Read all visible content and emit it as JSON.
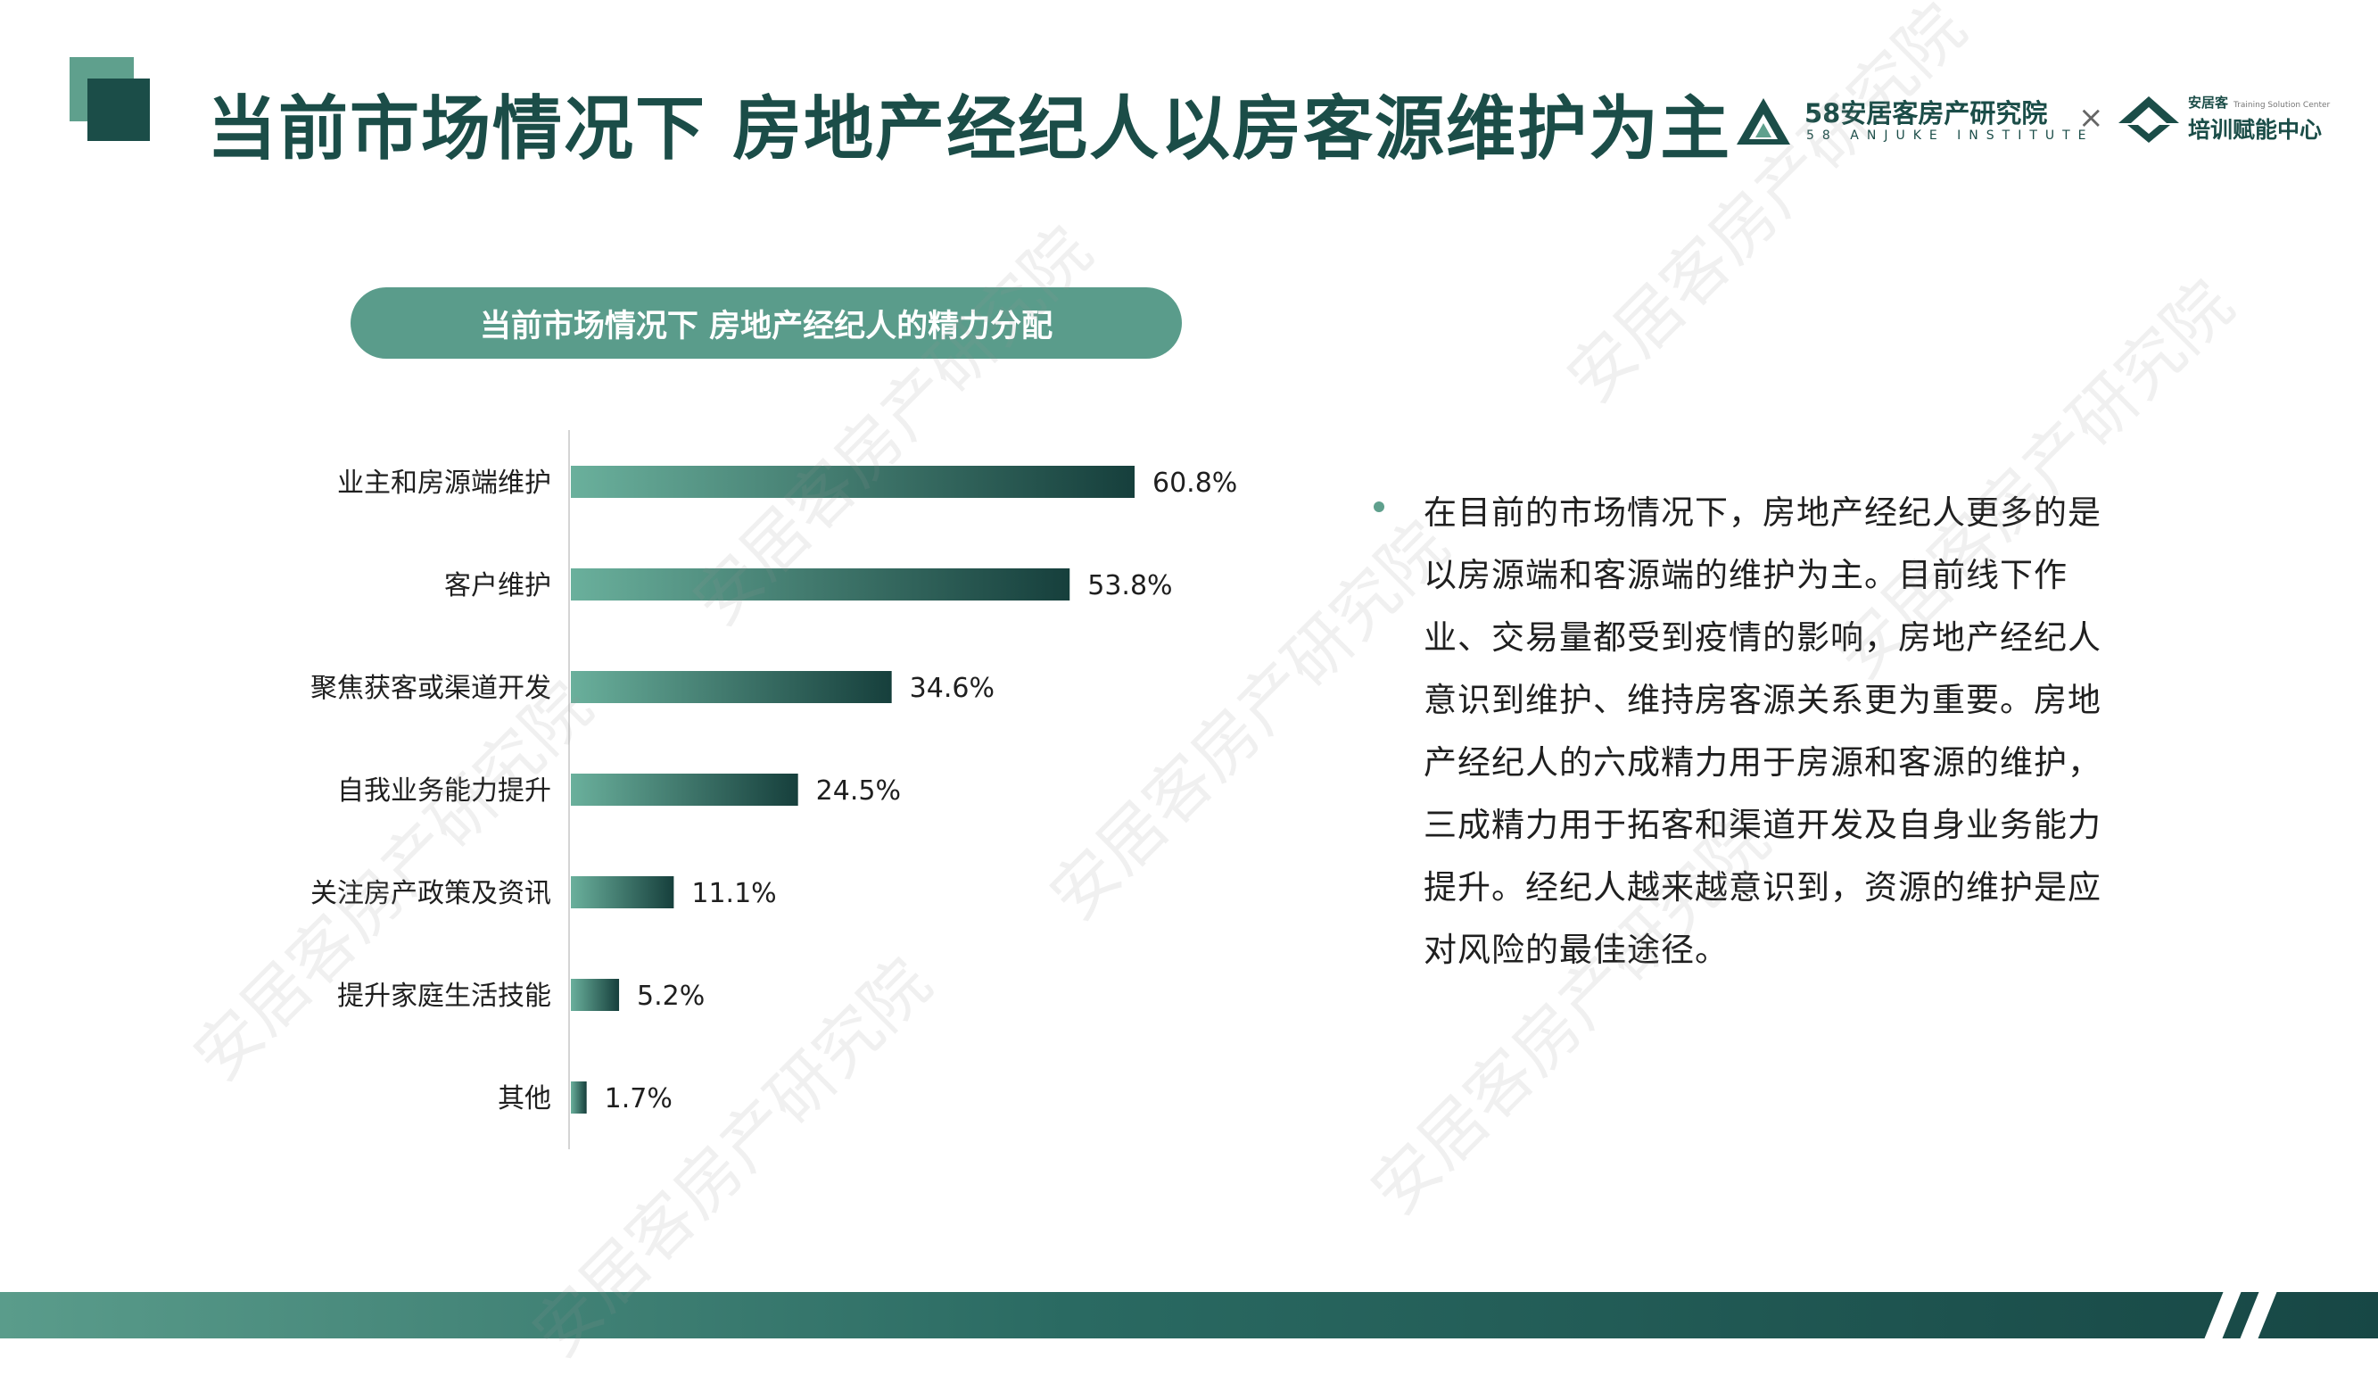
{
  "title": "当前市场情况下 房地产经纪人以房客源维护为主",
  "logos": {
    "institute_name": "58安居客房产研究院",
    "institute_sub": "58 ANJUKE INSTITUTE",
    "times": "×",
    "training_brand": "安居客",
    "training_sub": "Training Solution Center",
    "training_name": "培训赋能中心"
  },
  "watermark": "安居客房产研究院",
  "colors": {
    "brand_dark": "#1b4d48",
    "brand_light": "#5fa08d",
    "bar_start": "#6ab09c",
    "bar_end": "#163f3c"
  },
  "body_text": "在目前的市场情况下，房地产经纪人更多的是以房源端和客源端的维护为主。目前线下作业、交易量都受到疫情的影响，房地产经纪人意识到维护、维持房客源关系更为重要。房地产经纪人的六成精力用于房源和客源的维护，三成精力用于拓客和渠道开发及自身业务能力提升。经纪人越来越意识到，资源的维护是应对风险的最佳途径。",
  "chart_data": {
    "type": "bar",
    "orientation": "horizontal",
    "title": "当前市场情况下 房地产经纪人的精力分配",
    "categories": [
      "业主和房源端维护",
      "客户维护",
      "聚焦获客或渠道开发",
      "自我业务能力提升",
      "关注房产政策及资讯",
      "提升家庭生活技能",
      "其他"
    ],
    "values": [
      60.8,
      53.8,
      34.6,
      24.5,
      11.1,
      5.2,
      1.7
    ],
    "value_labels": [
      "60.8%",
      "53.8%",
      "34.6%",
      "24.5%",
      "11.1%",
      "5.2%",
      "1.7%"
    ],
    "unit": "%",
    "grid": false,
    "legend": "none"
  }
}
